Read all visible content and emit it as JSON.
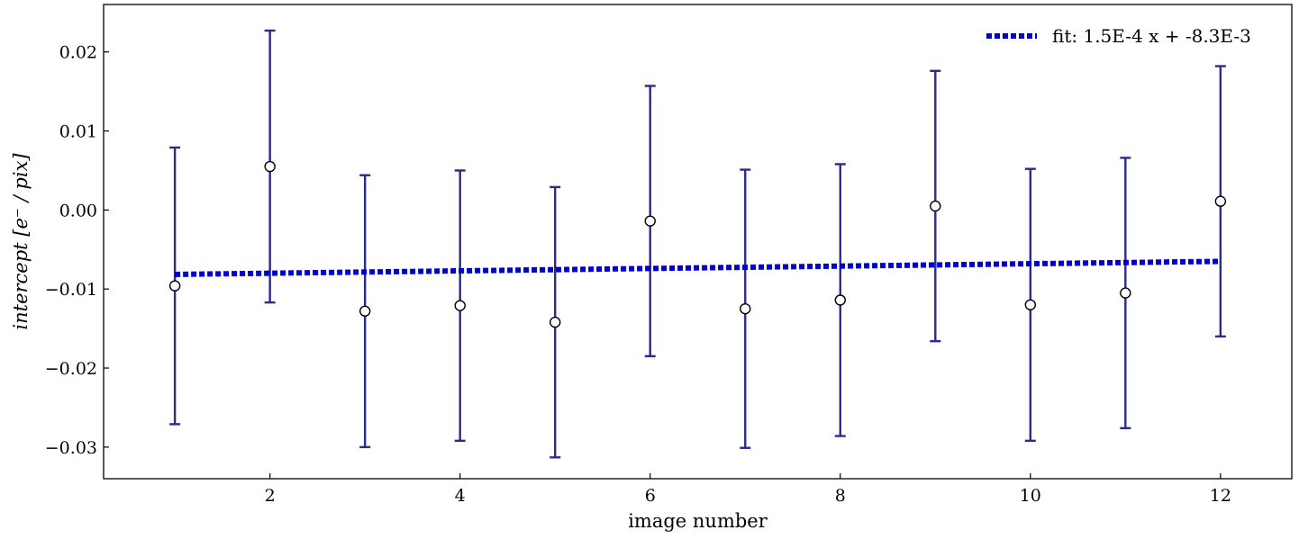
{
  "chart_data": {
    "type": "scatter",
    "xlabel": "image number",
    "ylabel": "intercept [e⁻ / pix]",
    "xlim": [
      0.25,
      12.75
    ],
    "ylim": [
      -0.034,
      0.026
    ],
    "xticks": [
      2,
      4,
      6,
      8,
      10,
      12
    ],
    "xtick_labels": [
      "2",
      "4",
      "6",
      "8",
      "10",
      "12"
    ],
    "yticks": [
      -0.03,
      -0.02,
      -0.01,
      0.0,
      0.01,
      0.02
    ],
    "ytick_labels": [
      "−0.03",
      "−0.02",
      "−0.01",
      "0.00",
      "0.01",
      "0.02"
    ],
    "grid": false,
    "legend_position": "top-right",
    "series": [
      {
        "kind": "errorbar",
        "color": "#2b2b88",
        "marker_fill": "#ffffff",
        "marker_edge": "#000000",
        "x": [
          1,
          2,
          3,
          4,
          5,
          6,
          7,
          8,
          9,
          10,
          11,
          12
        ],
        "y": [
          -0.0096,
          0.0055,
          -0.0128,
          -0.0121,
          -0.0142,
          -0.0014,
          -0.0125,
          -0.0114,
          0.0005,
          -0.012,
          -0.0105,
          0.0011
        ],
        "yerr": [
          0.0175,
          0.0172,
          0.0172,
          0.0171,
          0.0171,
          0.0171,
          0.0176,
          0.0172,
          0.0171,
          0.0172,
          0.0171,
          0.0171
        ]
      },
      {
        "kind": "line",
        "name": "fit: 1.5E-4 x + -8.3E-3",
        "color": "#0000cc",
        "linestyle": "dotted",
        "x": [
          1,
          12
        ],
        "y": [
          -0.00815,
          -0.0065
        ]
      }
    ]
  }
}
